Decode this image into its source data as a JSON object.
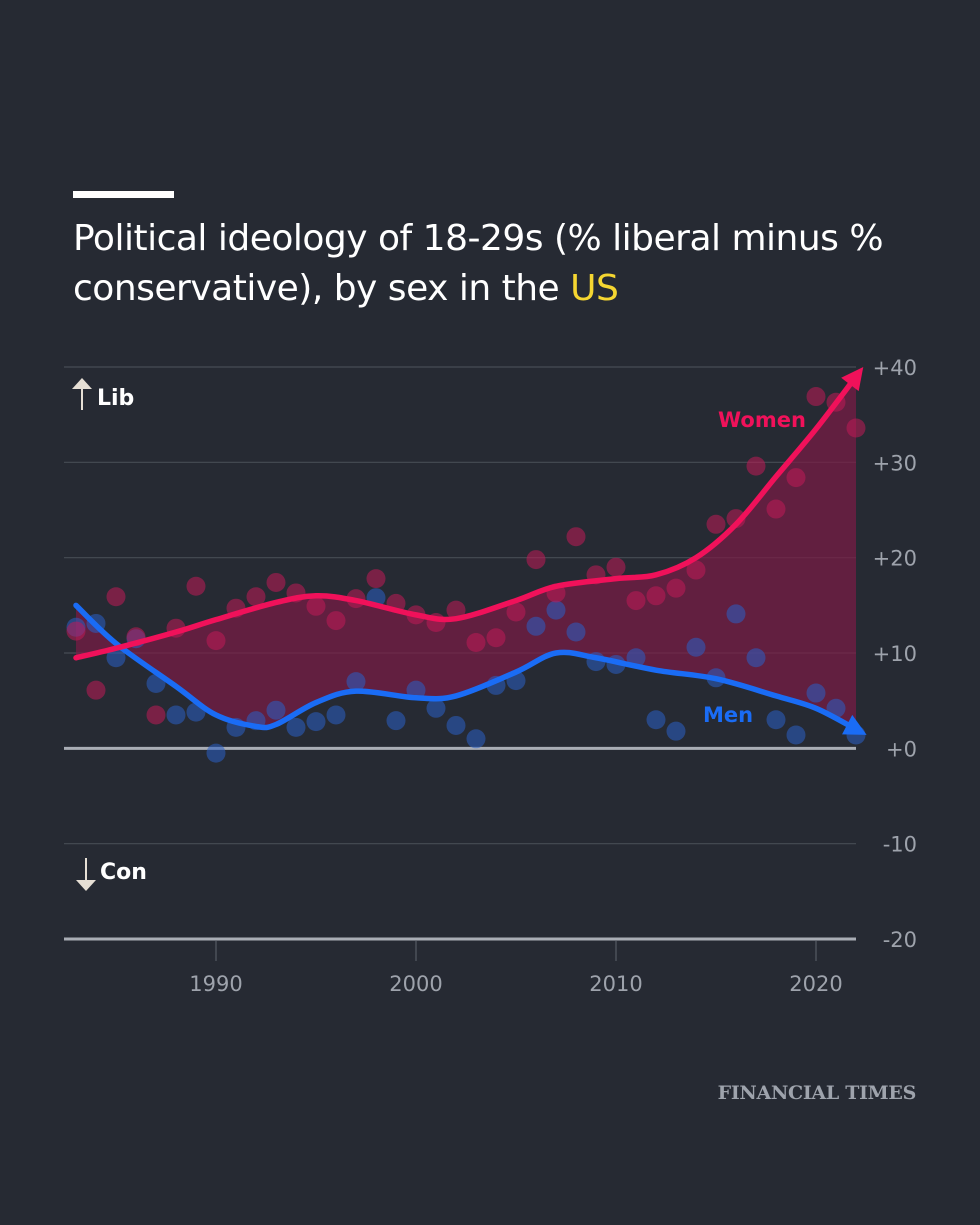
{
  "header": {
    "title_main": "Political ideology of 18-29s (% liberal minus % conservative), by sex in the ",
    "title_highlight": "US"
  },
  "footer": {
    "source": "FINANCIAL TIMES"
  },
  "colors": {
    "background": "#262a33",
    "women": "#f0115a",
    "men": "#1a6cf5",
    "fill": "#6a1a3a",
    "highlight": "#f5d631",
    "grid": "#474c55",
    "axis_text": "#9ea3ac"
  },
  "chart_data": {
    "type": "scatter",
    "title": "Political ideology of 18-29s (% liberal minus % conservative), by sex in the US",
    "xlabel": "",
    "ylabel": "",
    "xlim": [
      1983,
      2022
    ],
    "ylim": [
      -20,
      40
    ],
    "grid": true,
    "x_ticks": [
      1990,
      2000,
      2010,
      2020
    ],
    "x_tick_labels": [
      "1990",
      "2000",
      "2010",
      "2020"
    ],
    "y_ticks": [
      40,
      30,
      20,
      10,
      0,
      -10,
      -20
    ],
    "y_tick_labels": [
      "+40",
      "+30",
      "+20",
      "+10",
      "+0",
      "-10",
      "-20"
    ],
    "annotations": {
      "up": "Lib",
      "down": "Con"
    },
    "x": [
      1983,
      1984,
      1985,
      1986,
      1987,
      1988,
      1989,
      1990,
      1991,
      1992,
      1993,
      1994,
      1995,
      1996,
      1997,
      1998,
      1999,
      2000,
      2001,
      2002,
      2003,
      2004,
      2005,
      2006,
      2007,
      2008,
      2009,
      2010,
      2011,
      2012,
      2013,
      2014,
      2015,
      2016,
      2017,
      2018,
      2019,
      2020,
      2021,
      2022
    ],
    "series": [
      {
        "name": "Women",
        "color": "#f0115a",
        "values": [
          12.3,
          6.1,
          15.9,
          11.7,
          3.5,
          12.6,
          17.0,
          11.3,
          14.7,
          15.9,
          17.4,
          16.3,
          14.9,
          13.4,
          15.7,
          17.8,
          15.2,
          14.0,
          13.2,
          14.5,
          11.1,
          11.6,
          14.3,
          19.8,
          16.3,
          22.2,
          18.2,
          19.0,
          15.5,
          16.0,
          16.8,
          18.7,
          23.5,
          24.1,
          29.6,
          25.1,
          28.4,
          36.9,
          36.3,
          33.6
        ],
        "trend_x": [
          1983,
          1985,
          1988,
          1990,
          1993,
          1995,
          1997,
          2000,
          2002,
          2005,
          2007,
          2010,
          2012,
          2014,
          2016,
          2018,
          2020,
          2022
        ],
        "trend": [
          9.5,
          10.5,
          12.2,
          13.5,
          15.3,
          16.0,
          15.5,
          14.0,
          13.6,
          15.5,
          17.0,
          17.8,
          18.2,
          20.0,
          23.5,
          28.5,
          33.5,
          39.0
        ]
      },
      {
        "name": "Men",
        "color": "#1a6cf5",
        "values": [
          12.7,
          13.1,
          9.5,
          11.5,
          6.8,
          3.5,
          3.8,
          -0.5,
          2.2,
          2.9,
          4.0,
          2.2,
          2.8,
          3.5,
          7.0,
          15.8,
          2.9,
          6.1,
          4.2,
          2.4,
          1.0,
          6.6,
          7.1,
          12.8,
          14.5,
          12.2,
          9.1,
          8.8,
          9.5,
          3.0,
          1.8,
          10.6,
          7.4,
          14.1,
          9.5,
          3.0,
          1.4,
          5.8,
          4.2,
          1.4
        ],
        "trend_x": [
          1983,
          1985,
          1988,
          1990,
          1992,
          1993,
          1995,
          1997,
          2000,
          2002,
          2005,
          2007,
          2009,
          2012,
          2015,
          2018,
          2020,
          2022
        ],
        "trend": [
          15.0,
          11.0,
          6.5,
          3.5,
          2.3,
          2.5,
          4.8,
          6.0,
          5.3,
          5.5,
          8.0,
          10.0,
          9.5,
          8.2,
          7.3,
          5.5,
          4.2,
          2.0
        ]
      }
    ],
    "legend": "inline-labels"
  }
}
